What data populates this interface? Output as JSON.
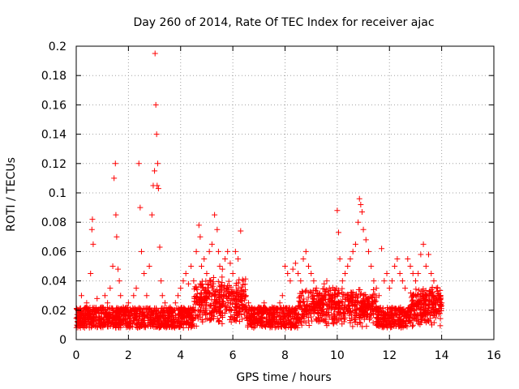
{
  "chart_data": {
    "type": "scatter",
    "title": "Day 260 of 2014, Rate Of TEC Index for receiver ajac",
    "xlabel": "GPS time / hours",
    "ylabel": "ROTI / TECUs",
    "xlim": [
      0,
      16
    ],
    "ylim": [
      0,
      0.2
    ],
    "xticks": [
      0,
      2,
      4,
      6,
      8,
      10,
      12,
      14,
      16
    ],
    "yticks": [
      0,
      0.02,
      0.04,
      0.06,
      0.08,
      0.1,
      0.12,
      0.14,
      0.16,
      0.18,
      0.2
    ],
    "xtick_labels": [
      "0",
      "2",
      "4",
      "6",
      "8",
      "10",
      "12",
      "14",
      "16"
    ],
    "ytick_labels": [
      "0",
      "0.02",
      "0.04",
      "0.06",
      "0.08",
      "0.1",
      "0.12",
      "0.14",
      "0.16",
      "0.18",
      "0.2"
    ],
    "grid": true,
    "marker": "plus",
    "color": "#ff0000",
    "series": [
      {
        "name": "ROTI",
        "x": [
          0.05,
          0.1,
          0.2,
          0.3,
          0.4,
          0.5,
          0.55,
          0.6,
          0.62,
          0.65,
          0.7,
          0.8,
          0.9,
          1.0,
          1.1,
          1.2,
          1.3,
          1.4,
          1.45,
          1.5,
          1.52,
          1.55,
          1.6,
          1.65,
          1.7,
          1.8,
          1.9,
          2.0,
          2.1,
          2.2,
          2.3,
          2.4,
          2.45,
          2.5,
          2.6,
          2.7,
          2.8,
          2.9,
          2.95,
          3.0,
          3.02,
          3.05,
          3.08,
          3.1,
          3.12,
          3.15,
          3.2,
          3.25,
          3.3,
          3.4,
          3.5,
          3.6,
          3.7,
          3.8,
          3.9,
          4.0,
          4.1,
          4.2,
          4.3,
          4.4,
          4.5,
          4.6,
          4.7,
          4.75,
          4.8,
          4.9,
          5.0,
          5.1,
          5.2,
          5.3,
          5.4,
          5.45,
          5.5,
          5.6,
          5.7,
          5.8,
          5.9,
          6.0,
          6.1,
          6.2,
          6.3,
          6.4,
          6.5,
          6.6,
          6.7,
          6.8,
          6.9,
          7.0,
          7.1,
          7.2,
          7.3,
          7.4,
          7.5,
          7.6,
          7.7,
          7.8,
          7.9,
          8.0,
          8.1,
          8.2,
          8.3,
          8.4,
          8.5,
          8.6,
          8.7,
          8.8,
          8.9,
          9.0,
          9.1,
          9.2,
          9.3,
          9.4,
          9.5,
          9.6,
          9.7,
          9.8,
          9.9,
          10.0,
          10.05,
          10.1,
          10.2,
          10.3,
          10.4,
          10.5,
          10.6,
          10.7,
          10.8,
          10.85,
          10.9,
          10.95,
          11.0,
          11.1,
          11.2,
          11.3,
          11.4,
          11.5,
          11.6,
          11.7,
          11.8,
          11.9,
          12.0,
          12.1,
          12.2,
          12.3,
          12.4,
          12.5,
          12.6,
          12.7,
          12.8,
          12.9,
          13.0,
          13.1,
          13.2,
          13.3,
          13.4,
          13.5,
          13.6,
          13.7,
          13.8,
          13.9,
          14.0
        ],
        "y": [
          0.012,
          0.02,
          0.03,
          0.015,
          0.025,
          0.018,
          0.045,
          0.075,
          0.082,
          0.065,
          0.02,
          0.028,
          0.015,
          0.022,
          0.03,
          0.025,
          0.035,
          0.05,
          0.11,
          0.12,
          0.085,
          0.07,
          0.048,
          0.04,
          0.03,
          0.022,
          0.018,
          0.025,
          0.02,
          0.03,
          0.035,
          0.12,
          0.09,
          0.06,
          0.045,
          0.03,
          0.05,
          0.085,
          0.105,
          0.115,
          0.195,
          0.16,
          0.14,
          0.105,
          0.12,
          0.103,
          0.063,
          0.04,
          0.03,
          0.025,
          0.02,
          0.022,
          0.018,
          0.025,
          0.03,
          0.035,
          0.04,
          0.045,
          0.038,
          0.05,
          0.04,
          0.06,
          0.078,
          0.07,
          0.05,
          0.055,
          0.045,
          0.06,
          0.065,
          0.085,
          0.075,
          0.06,
          0.05,
          0.048,
          0.055,
          0.06,
          0.052,
          0.045,
          0.06,
          0.055,
          0.074,
          0.04,
          0.03,
          0.025,
          0.02,
          0.018,
          0.02,
          0.022,
          0.018,
          0.025,
          0.02,
          0.018,
          0.022,
          0.02,
          0.018,
          0.025,
          0.03,
          0.05,
          0.045,
          0.04,
          0.048,
          0.052,
          0.045,
          0.04,
          0.055,
          0.06,
          0.05,
          0.045,
          0.04,
          0.035,
          0.03,
          0.025,
          0.038,
          0.04,
          0.035,
          0.03,
          0.025,
          0.088,
          0.073,
          0.055,
          0.04,
          0.045,
          0.05,
          0.055,
          0.06,
          0.065,
          0.08,
          0.096,
          0.092,
          0.087,
          0.075,
          0.068,
          0.06,
          0.05,
          0.04,
          0.035,
          0.03,
          0.062,
          0.04,
          0.045,
          0.035,
          0.04,
          0.05,
          0.055,
          0.045,
          0.04,
          0.035,
          0.055,
          0.05,
          0.045,
          0.04,
          0.045,
          0.058,
          0.065,
          0.05,
          0.058,
          0.045,
          0.04,
          0.035,
          0.03,
          0.025
        ]
      }
    ]
  }
}
